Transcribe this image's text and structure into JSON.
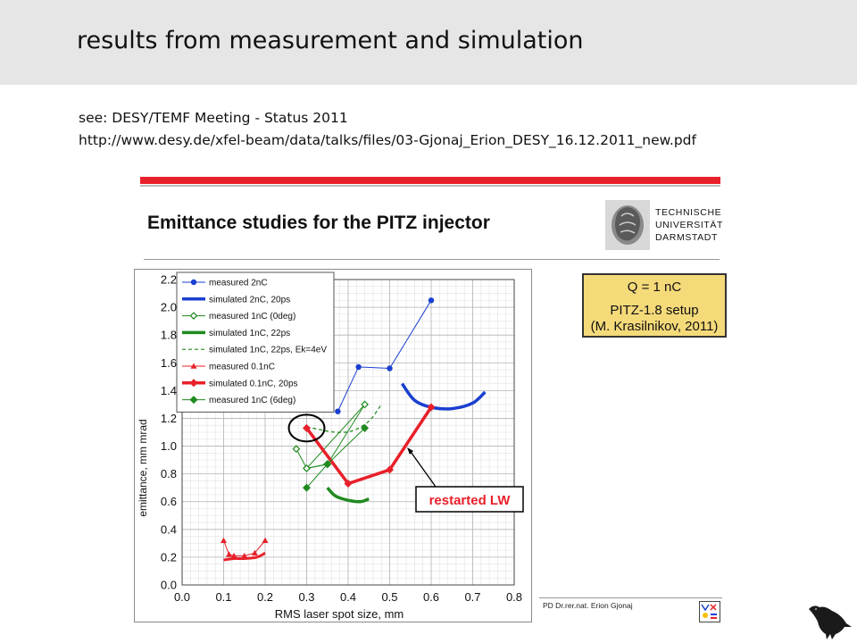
{
  "slide": {
    "title": "results from measurement and simulation",
    "ref_line1": "see: DESY/TEMF Meeting - Status 2011",
    "ref_line2": "http://www.desy.de/xfel-beam/data/talks/files/03-Gjonaj_Erion_DESY_16.12.2011_new.pdf"
  },
  "embedded": {
    "title": "Emittance studies for the PITZ injector",
    "logo_lines": [
      "TECHNISCHE",
      "UNIVERSITÄT",
      "DARMSTADT"
    ],
    "infobox": {
      "line1": "Q = 1 nC",
      "line2": "PITZ-1.8 setup",
      "line3": "(M. Krasilnikov, 2011)"
    },
    "footer": "PD Dr.rer.nat. Erion Gjonaj"
  },
  "colors": {
    "accent_red": "#e8202a",
    "box_yellow": "#f5da7a",
    "blue": "#1a3fd0",
    "green": "#1f8a1f",
    "red": "#e8202a"
  },
  "chart_data": {
    "type": "line",
    "xlabel": "RMS laser spot size, mm",
    "ylabel": "emittance, mm mrad",
    "xlim": [
      0.0,
      0.8
    ],
    "ylim": [
      0.0,
      2.2
    ],
    "xticks": [
      "0.0",
      "0.1",
      "0.2",
      "0.3",
      "0.4",
      "0.5",
      "0.6",
      "0.7",
      "0.8"
    ],
    "yticks": [
      "0.0",
      "0.2",
      "0.4",
      "0.6",
      "0.8",
      "1.0",
      "1.2",
      "1.4",
      "1.6",
      "1.8",
      "2.0",
      "2.2"
    ],
    "grid": true,
    "legend_position": "top-left",
    "annotation": "restarted LW",
    "series": [
      {
        "name": "measured 2nC",
        "color": "#1a3fd0",
        "dash": "",
        "width": 1,
        "marker": "circle",
        "x": [
          0.375,
          0.425,
          0.5,
          0.6
        ],
        "y": [
          1.25,
          1.57,
          1.56,
          2.05
        ]
      },
      {
        "name": "simulated 2nC, 20ps",
        "color": "#1a3fd0",
        "dash": "",
        "width": 3.5,
        "marker": "none",
        "x": [
          0.53,
          0.56,
          0.6,
          0.65,
          0.7,
          0.73
        ],
        "y": [
          1.45,
          1.33,
          1.28,
          1.27,
          1.31,
          1.39
        ]
      },
      {
        "name": "measured 1nC (0deg)",
        "color": "#1f8a1f",
        "dash": "",
        "width": 1,
        "marker": "diamond-open",
        "x": [
          0.275,
          0.3,
          0.35,
          0.3,
          0.44
        ],
        "y": [
          0.98,
          0.84,
          0.87,
          0.84,
          1.3
        ]
      },
      {
        "name": "simulated 1nC, 22ps",
        "color": "#1f8a1f",
        "dash": "",
        "width": 3.5,
        "marker": "none",
        "x": [
          0.35,
          0.37,
          0.4,
          0.43,
          0.45
        ],
        "y": [
          0.7,
          0.64,
          0.61,
          0.6,
          0.62
        ]
      },
      {
        "name": "simulated 1nC, 22ps, Ek=4eV",
        "color": "#1f8a1f",
        "dash": "4 3",
        "width": 1.2,
        "marker": "none",
        "x": [
          0.3,
          0.33,
          0.37,
          0.41,
          0.45,
          0.48
        ],
        "y": [
          1.14,
          1.12,
          1.1,
          1.11,
          1.18,
          1.3
        ]
      },
      {
        "name": "measured 0.1nC",
        "color": "#e8202a",
        "dash": "",
        "width": 1,
        "marker": "triangle",
        "x": [
          0.1,
          0.113,
          0.125,
          0.15,
          0.175,
          0.2
        ],
        "y": [
          0.32,
          0.22,
          0.21,
          0.21,
          0.23,
          0.32
        ]
      },
      {
        "name": "simulated 0.1nC, 20ps",
        "color": "#e8202a",
        "dash": "",
        "width": 3.5,
        "marker": "diamond",
        "x": [
          0.3,
          0.4,
          0.5,
          0.6
        ],
        "y": [
          1.13,
          0.73,
          0.83,
          1.28
        ]
      },
      {
        "name": "measured 1nC (6deg)",
        "color": "#1f8a1f",
        "dash": "",
        "width": 1,
        "marker": "diamond",
        "x": [
          0.3,
          0.35,
          0.35,
          0.44
        ],
        "y": [
          0.7,
          0.87,
          0.87,
          1.13
        ]
      }
    ],
    "extra_curves": [
      {
        "color": "#e8202a",
        "width": 3,
        "x": [
          0.1,
          0.125,
          0.15,
          0.18,
          0.2
        ],
        "y": [
          0.18,
          0.19,
          0.19,
          0.2,
          0.23
        ]
      }
    ],
    "extra_segments": [
      {
        "color": "#1f8a1f",
        "x": [
          0.35,
          0.44
        ],
        "y": [
          0.87,
          1.3
        ]
      },
      {
        "color": "#1f8a1f",
        "x": [
          0.35,
          0.3
        ],
        "y": [
          0.87,
          0.84
        ]
      }
    ]
  }
}
